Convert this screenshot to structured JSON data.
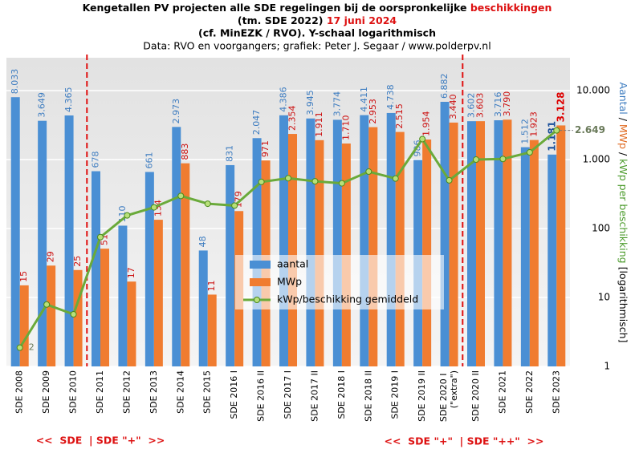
{
  "chart_data": {
    "type": "bar",
    "title": [
      "Kengetallen PV projecten alle SDE regelingen bij de oorspronkelijke",
      "beschikkingen"
    ],
    "title2": [
      "(tm. SDE 2022)",
      "17 juni 2024"
    ],
    "title3": "(cf. MinEZK  / RVO). Y-schaal logarithmisch",
    "subtitle": "Data: RVO en voorgangers; grafiek: Peter J. Segaar / www.polderpv.nl",
    "y_label": [
      "Aantal",
      " / ",
      "MWp",
      " / ",
      "kWp per beschikking",
      "  [logarithmisch]"
    ],
    "annotations": [
      "<<  SDE  | SDE \"+\"  >>",
      "<<  SDE \"+\"  | SDE \"++\"  >>"
    ],
    "categories": [
      "SDE 2008",
      "SDE 2009",
      "SDE 2010",
      "SDE 2011",
      "SDE 2012",
      "SDE 2013",
      "SDE 2014",
      "SDE 2015",
      "SDE 2016 I",
      "SDE 2016 II",
      "SDE 2017 I",
      "SDE 2017 II",
      "SDE 2018 I",
      "SDE 2018 II",
      "SDE 2019 I",
      "SDE 2019 II",
      "SDE 2020 I (\"extra\")",
      "SDE 2020 II",
      "SDE 2021",
      "SDE 2022",
      "SDE 2023"
    ],
    "series": [
      {
        "name": "aantal",
        "color": "#4a8fd4",
        "label_color": "#3d7cc0",
        "values": [
          8033,
          3649,
          4365,
          678,
          110,
          661,
          2973,
          48,
          831,
          2047,
          4386,
          3945,
          3774,
          4411,
          4738,
          986,
          6882,
          3602,
          3716,
          1512,
          1181
        ],
        "value_labels": [
          "8.033",
          "3.649",
          "4.365",
          "678",
          "110",
          "661",
          "2.973",
          "48",
          "831",
          "2.047",
          "4.386",
          "3.945",
          "3.774",
          "4.411",
          "4.738",
          "986",
          "6.882",
          "3.602",
          "3.716",
          "1.512",
          "1.181"
        ]
      },
      {
        "name": "MWp",
        "color": "#f07c30",
        "label_color": "#cc1111",
        "values": [
          15,
          29,
          25,
          51,
          17,
          134,
          883,
          11,
          179,
          971,
          2354,
          1911,
          1710,
          2953,
          2515,
          1954,
          3440,
          3603,
          3790,
          1923,
          3128
        ],
        "value_labels": [
          "15",
          "29",
          "25",
          "51",
          "17",
          "134",
          "883",
          "11",
          "179",
          "971",
          "2.354",
          "1.911",
          "1.710",
          "2.953",
          "2.515",
          "1.954",
          "3.440",
          "3.603",
          "3.790",
          "1.923",
          "3.128"
        ]
      },
      {
        "name": "kWp/beschikking gemiddeld",
        "color": "#6aaa3a",
        "type": "line",
        "values": [
          1.87,
          7.9,
          5.7,
          75,
          155,
          203,
          297,
          229,
          215,
          474,
          537,
          484,
          453,
          669,
          531,
          1982,
          500,
          1000,
          1020,
          1272,
          2649
        ],
        "value_labels": [
          "2",
          null,
          null,
          null,
          null,
          null,
          null,
          null,
          null,
          null,
          null,
          null,
          null,
          null,
          null,
          null,
          null,
          null,
          null,
          null,
          "2.649"
        ]
      }
    ],
    "log_scale": true,
    "ylim": [
      1,
      30000
    ],
    "yticks": [
      1,
      10,
      100,
      {
        "value": 1000,
        "label": "1.000"
      },
      {
        "value": 10000,
        "label": "10.000"
      }
    ],
    "grid": true
  }
}
